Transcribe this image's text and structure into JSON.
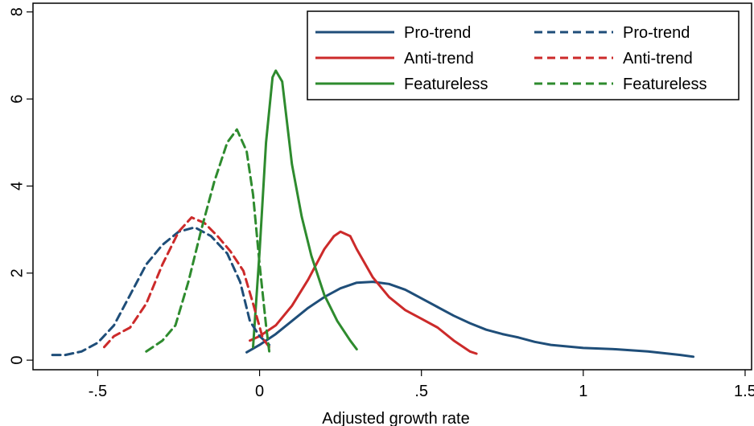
{
  "chart_data": {
    "type": "line",
    "title": "",
    "xlabel": "Adjusted growth rate",
    "ylabel": "",
    "xlim": [
      -0.7,
      1.52
    ],
    "ylim": [
      -0.22,
      8.2
    ],
    "x_ticks": [
      {
        "value": -0.5,
        "label": "-.5"
      },
      {
        "value": 0,
        "label": "0"
      },
      {
        "value": 0.5,
        "label": ".5"
      },
      {
        "value": 1,
        "label": "1"
      },
      {
        "value": 1.5,
        "label": "1.5"
      }
    ],
    "y_ticks": [
      {
        "value": 0,
        "label": "0"
      },
      {
        "value": 2,
        "label": "2"
      },
      {
        "value": 4,
        "label": "4"
      },
      {
        "value": 6,
        "label": "6"
      },
      {
        "value": 8,
        "label": "8"
      }
    ],
    "grid": false,
    "legend_position": "top-right",
    "series": [
      {
        "name": "Pro-trend",
        "color": "#1f4e79",
        "style": "solid",
        "points": [
          [
            -0.04,
            0.18
          ],
          [
            0.0,
            0.35
          ],
          [
            0.05,
            0.6
          ],
          [
            0.1,
            0.9
          ],
          [
            0.15,
            1.2
          ],
          [
            0.2,
            1.45
          ],
          [
            0.25,
            1.65
          ],
          [
            0.3,
            1.78
          ],
          [
            0.35,
            1.8
          ],
          [
            0.4,
            1.75
          ],
          [
            0.45,
            1.62
          ],
          [
            0.5,
            1.42
          ],
          [
            0.55,
            1.22
          ],
          [
            0.6,
            1.02
          ],
          [
            0.65,
            0.85
          ],
          [
            0.7,
            0.7
          ],
          [
            0.75,
            0.6
          ],
          [
            0.8,
            0.52
          ],
          [
            0.85,
            0.42
          ],
          [
            0.9,
            0.35
          ],
          [
            1.0,
            0.28
          ],
          [
            1.1,
            0.25
          ],
          [
            1.2,
            0.2
          ],
          [
            1.3,
            0.12
          ],
          [
            1.34,
            0.08
          ]
        ]
      },
      {
        "name": "Anti-trend",
        "color": "#cc2a2a",
        "style": "solid",
        "points": [
          [
            -0.03,
            0.45
          ],
          [
            0.0,
            0.55
          ],
          [
            0.05,
            0.8
          ],
          [
            0.1,
            1.25
          ],
          [
            0.15,
            1.85
          ],
          [
            0.2,
            2.55
          ],
          [
            0.23,
            2.85
          ],
          [
            0.25,
            2.95
          ],
          [
            0.28,
            2.85
          ],
          [
            0.3,
            2.55
          ],
          [
            0.35,
            1.9
          ],
          [
            0.4,
            1.45
          ],
          [
            0.45,
            1.15
          ],
          [
            0.5,
            0.95
          ],
          [
            0.55,
            0.75
          ],
          [
            0.6,
            0.45
          ],
          [
            0.65,
            0.2
          ],
          [
            0.67,
            0.15
          ]
        ]
      },
      {
        "name": "Featureless",
        "color": "#2e8b2e",
        "style": "solid",
        "points": [
          [
            -0.02,
            0.3
          ],
          [
            0.0,
            2.5
          ],
          [
            0.02,
            5.0
          ],
          [
            0.04,
            6.5
          ],
          [
            0.05,
            6.65
          ],
          [
            0.07,
            6.4
          ],
          [
            0.1,
            4.5
          ],
          [
            0.13,
            3.3
          ],
          [
            0.16,
            2.4
          ],
          [
            0.2,
            1.5
          ],
          [
            0.24,
            0.9
          ],
          [
            0.28,
            0.45
          ],
          [
            0.3,
            0.25
          ]
        ]
      },
      {
        "name": "Pro-trend",
        "color": "#1f4e79",
        "style": "dashed",
        "points": [
          [
            -0.64,
            0.12
          ],
          [
            -0.6,
            0.12
          ],
          [
            -0.55,
            0.2
          ],
          [
            -0.5,
            0.4
          ],
          [
            -0.45,
            0.8
          ],
          [
            -0.4,
            1.5
          ],
          [
            -0.35,
            2.2
          ],
          [
            -0.3,
            2.65
          ],
          [
            -0.25,
            2.95
          ],
          [
            -0.2,
            3.05
          ],
          [
            -0.15,
            2.85
          ],
          [
            -0.1,
            2.45
          ],
          [
            -0.06,
            1.8
          ],
          [
            -0.03,
            0.9
          ],
          [
            0.0,
            0.55
          ],
          [
            0.03,
            0.35
          ]
        ]
      },
      {
        "name": "Anti-trend",
        "color": "#cc2a2a",
        "style": "dashed",
        "points": [
          [
            -0.48,
            0.3
          ],
          [
            -0.45,
            0.55
          ],
          [
            -0.4,
            0.75
          ],
          [
            -0.35,
            1.3
          ],
          [
            -0.3,
            2.2
          ],
          [
            -0.25,
            2.95
          ],
          [
            -0.21,
            3.28
          ],
          [
            -0.17,
            3.15
          ],
          [
            -0.13,
            2.85
          ],
          [
            -0.09,
            2.5
          ],
          [
            -0.05,
            2.05
          ],
          [
            -0.02,
            1.3
          ],
          [
            0.01,
            0.5
          ],
          [
            0.03,
            0.3
          ]
        ]
      },
      {
        "name": "Featureless",
        "color": "#2e8b2e",
        "style": "dashed",
        "points": [
          [
            -0.35,
            0.2
          ],
          [
            -0.3,
            0.45
          ],
          [
            -0.26,
            0.8
          ],
          [
            -0.22,
            1.8
          ],
          [
            -0.18,
            3.0
          ],
          [
            -0.14,
            4.1
          ],
          [
            -0.1,
            5.0
          ],
          [
            -0.07,
            5.3
          ],
          [
            -0.04,
            4.8
          ],
          [
            -0.02,
            3.8
          ],
          [
            0.0,
            2.2
          ],
          [
            0.02,
            0.8
          ],
          [
            0.03,
            0.2
          ]
        ]
      }
    ]
  }
}
